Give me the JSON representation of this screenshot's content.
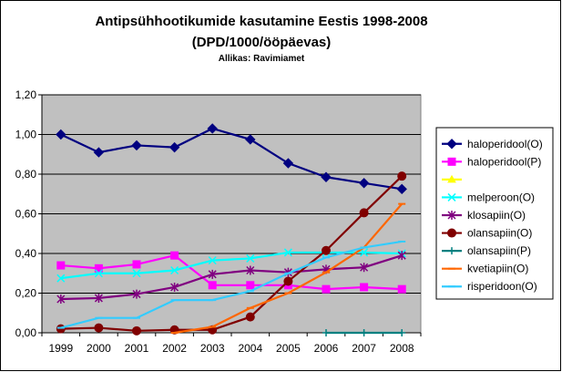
{
  "chart_data": {
    "type": "line",
    "title": "Antipsühhootikumide kasutamine Eestis 1998-2008",
    "subtitle": "(DPD/1000/ööpäevas)",
    "source": "Allikas: Ravimiamet",
    "categories": [
      "1999",
      "2000",
      "2001",
      "2002",
      "2003",
      "2004",
      "2005",
      "2006",
      "2007",
      "2008"
    ],
    "y_ticks": [
      "0,00",
      "0,20",
      "0,40",
      "0,60",
      "0,80",
      "1,00",
      "1,20"
    ],
    "ylim": [
      0,
      1.2
    ],
    "grid": true,
    "legend_position": "right",
    "plot_background": "#c0c0c0",
    "series": [
      {
        "name": "haloperidool(O)",
        "color": "#000080",
        "marker": "diamond",
        "values": [
          1.0,
          0.91,
          0.945,
          0.935,
          1.03,
          0.975,
          0.855,
          0.785,
          0.755,
          0.725
        ]
      },
      {
        "name": "haloperidool(P)",
        "color": "#ff00ff",
        "marker": "square",
        "values": [
          0.34,
          0.325,
          0.345,
          0.39,
          0.24,
          0.24,
          0.24,
          0.22,
          0.23,
          0.22
        ]
      },
      {
        "name": "",
        "color": "#ffff00",
        "marker": "triangle",
        "values": [
          null,
          null,
          null,
          null,
          null,
          null,
          null,
          null,
          null,
          null
        ]
      },
      {
        "name": "melperoon(O)",
        "color": "#00ffff",
        "marker": "x",
        "values": [
          0.275,
          0.3,
          0.3,
          0.315,
          0.365,
          0.375,
          0.405,
          0.405,
          0.405,
          0.4
        ]
      },
      {
        "name": "klosapiin(O)",
        "color": "#800080",
        "marker": "star",
        "values": [
          0.17,
          0.175,
          0.195,
          0.23,
          0.295,
          0.315,
          0.305,
          0.32,
          0.33,
          0.39
        ]
      },
      {
        "name": "olansapiin(O)",
        "color": "#800000",
        "marker": "circle",
        "values": [
          0.02,
          0.025,
          0.01,
          0.015,
          0.015,
          0.08,
          0.26,
          0.415,
          0.605,
          0.79
        ]
      },
      {
        "name": "olansapiin(P)",
        "color": "#008080",
        "marker": "plus",
        "values": [
          null,
          null,
          null,
          null,
          null,
          null,
          null,
          0.0,
          0.0,
          0.0
        ]
      },
      {
        "name": "kvetiapiin(O)",
        "color": "#ff6600",
        "marker": "dash",
        "values": [
          null,
          null,
          null,
          0.0,
          0.03,
          0.125,
          0.2,
          0.305,
          0.43,
          0.65
        ]
      },
      {
        "name": "risperidoon(O)",
        "color": "#33ccff",
        "marker": "dash",
        "values": [
          0.025,
          0.075,
          0.075,
          0.165,
          0.165,
          0.21,
          0.3,
          0.38,
          0.43,
          0.46
        ]
      }
    ]
  }
}
